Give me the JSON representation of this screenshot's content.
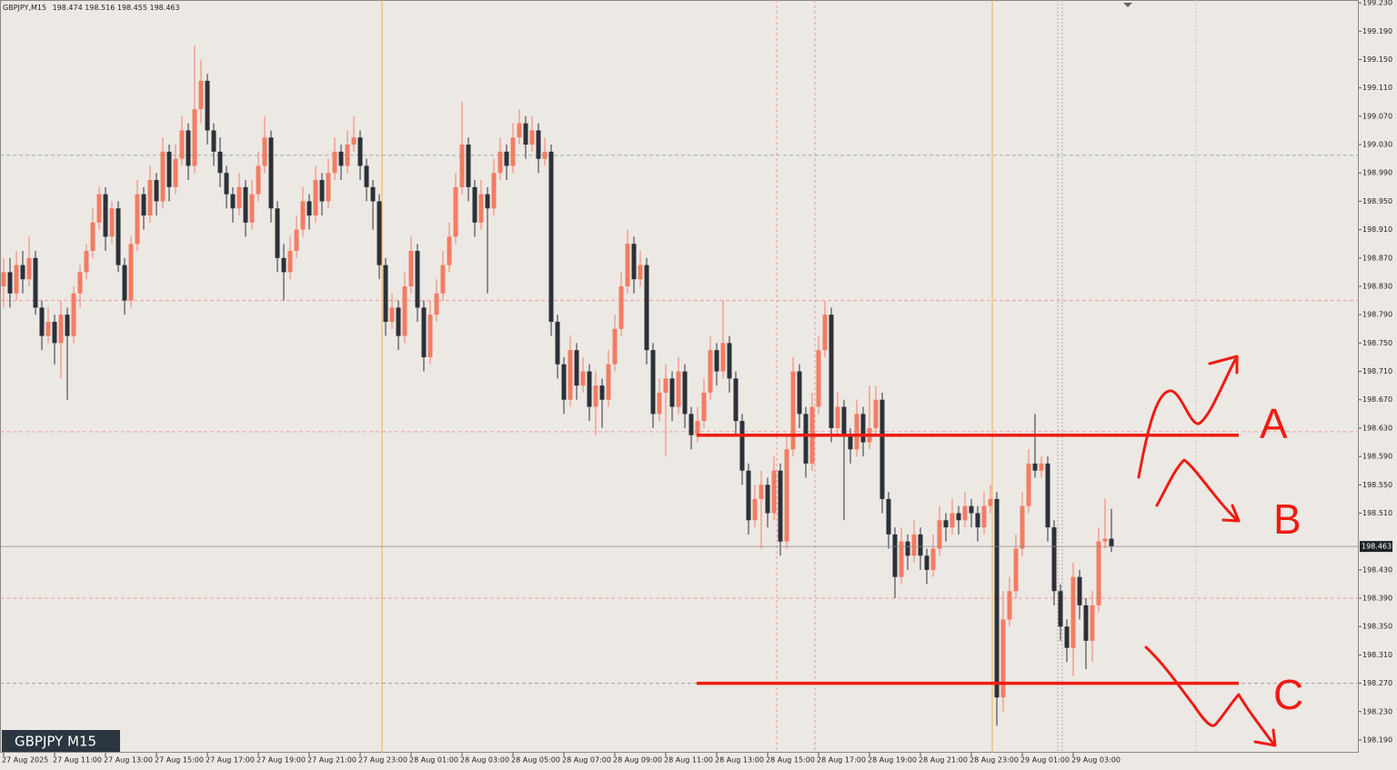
{
  "chart_data": {
    "type": "candlestick",
    "header_symbol": "GBPJPY,M15",
    "label_box": "GBPJPY M15",
    "bull_color": "#f47c63",
    "bear_color": "#2c3138",
    "ylim": [
      198.172,
      199.234
    ],
    "yticks": [
      {
        "value": 199.23,
        "label": "199.230"
      },
      {
        "value": 199.19,
        "label": "199.190"
      },
      {
        "value": 199.15,
        "label": "199.150"
      },
      {
        "value": 199.11,
        "label": "199.110"
      },
      {
        "value": 199.07,
        "label": "199.070"
      },
      {
        "value": 199.03,
        "label": "199.030"
      },
      {
        "value": 198.99,
        "label": "198.990"
      },
      {
        "value": 198.95,
        "label": "198.950"
      },
      {
        "value": 198.91,
        "label": "198.910"
      },
      {
        "value": 198.87,
        "label": "198.870"
      },
      {
        "value": 198.83,
        "label": "198.830"
      },
      {
        "value": 198.79,
        "label": "198.790"
      },
      {
        "value": 198.75,
        "label": "198.750"
      },
      {
        "value": 198.71,
        "label": "198.710"
      },
      {
        "value": 198.67,
        "label": "198.670"
      },
      {
        "value": 198.63,
        "label": "198.630"
      },
      {
        "value": 198.59,
        "label": "198.590"
      },
      {
        "value": 198.55,
        "label": "198.550"
      },
      {
        "value": 198.51,
        "label": "198.510"
      },
      {
        "value": 198.43,
        "label": "198.430"
      },
      {
        "value": 198.39,
        "label": "198.390"
      },
      {
        "value": 198.35,
        "label": "198.350"
      },
      {
        "value": 198.31,
        "label": "198.310"
      },
      {
        "value": 198.27,
        "label": "198.270"
      },
      {
        "value": 198.23,
        "label": "198.230"
      },
      {
        "value": 198.19,
        "label": "198.190"
      }
    ],
    "hlines": [
      199.015,
      198.81,
      198.625,
      198.39,
      198.27
    ],
    "hline_colors": [
      "#9fb0a8",
      "#e8a0a0",
      "#e8a0a0",
      "#e8a0a0",
      "#9aa2a8"
    ],
    "levels": [
      198.62,
      198.27
    ],
    "level_color": "#ee1c12",
    "annotations": [
      "A",
      "B",
      "C"
    ],
    "categories": [
      "27 Aug 2025",
      null,
      null,
      null,
      null,
      null,
      null,
      null,
      "27 Aug 11:00",
      null,
      null,
      null,
      null,
      null,
      null,
      null,
      "27 Aug 13:00",
      null,
      null,
      null,
      null,
      null,
      null,
      null,
      "27 Aug 15:00",
      null,
      null,
      null,
      null,
      null,
      null,
      null,
      "27 Aug 17:00",
      null,
      null,
      null,
      null,
      null,
      null,
      null,
      "27 Aug 19:00",
      null,
      null,
      null,
      null,
      null,
      null,
      null,
      "27 Aug 21:00",
      null,
      null,
      null,
      null,
      null,
      null,
      null,
      "27 Aug 23:00",
      null,
      null,
      null,
      null,
      null,
      null,
      null,
      "28 Aug 01:00",
      null,
      null,
      null,
      null,
      null,
      null,
      null,
      "28 Aug 03:00",
      null,
      null,
      null,
      null,
      null,
      null,
      null,
      "28 Aug 05:00",
      null,
      null,
      null,
      null,
      null,
      null,
      null,
      "28 Aug 07:00",
      null,
      null,
      null,
      null,
      null,
      null,
      null,
      "28 Aug 09:00",
      null,
      null,
      null,
      null,
      null,
      null,
      null,
      "28 Aug 11:00",
      null,
      null,
      null,
      null,
      null,
      null,
      null,
      "28 Aug 13:00",
      null,
      null,
      null,
      null,
      null,
      null,
      null,
      "28 Aug 15:00",
      null,
      null,
      null,
      null,
      null,
      null,
      null,
      "28 Aug 17:00",
      null,
      null,
      null,
      null,
      null,
      null,
      null,
      "28 Aug 19:00",
      null,
      null,
      null,
      null,
      null,
      null,
      null,
      "28 Aug 21:00",
      null,
      null,
      null,
      null,
      null,
      null,
      null,
      "28 Aug 23:00",
      null,
      null,
      null,
      null,
      null,
      null,
      null,
      "29 Aug 01:00",
      null,
      null,
      null,
      null,
      null,
      null,
      null,
      "29 Aug 03:00",
      null,
      null,
      null,
      null,
      null,
      null
    ],
    "ohlc": [
      [
        198.83,
        198.87,
        198.8,
        198.85
      ],
      [
        198.85,
        198.87,
        198.8,
        198.82
      ],
      [
        198.82,
        198.88,
        198.81,
        198.86
      ],
      [
        198.86,
        198.88,
        198.82,
        198.84
      ],
      [
        198.84,
        198.9,
        198.83,
        198.87
      ],
      [
        198.87,
        198.88,
        198.79,
        198.8
      ],
      [
        198.8,
        198.81,
        198.74,
        198.76
      ],
      [
        198.76,
        198.8,
        198.75,
        198.78
      ],
      [
        198.78,
        198.79,
        198.72,
        198.75
      ],
      [
        198.75,
        198.81,
        198.7,
        198.79
      ],
      [
        198.79,
        198.8,
        198.67,
        198.76
      ],
      [
        198.76,
        198.83,
        198.75,
        198.82
      ],
      [
        198.82,
        198.86,
        198.8,
        198.85
      ],
      [
        198.85,
        198.89,
        198.84,
        198.88
      ],
      [
        198.88,
        198.94,
        198.87,
        198.92
      ],
      [
        198.92,
        198.97,
        198.91,
        198.96
      ],
      [
        198.96,
        198.97,
        198.88,
        198.9
      ],
      [
        198.9,
        198.95,
        198.89,
        198.94
      ],
      [
        198.94,
        198.95,
        198.85,
        198.86
      ],
      [
        198.86,
        198.87,
        198.79,
        198.81
      ],
      [
        198.81,
        198.9,
        198.8,
        198.89
      ],
      [
        198.89,
        198.98,
        198.88,
        198.96
      ],
      [
        198.96,
        198.97,
        198.91,
        198.93
      ],
      [
        198.93,
        199.0,
        198.92,
        198.98
      ],
      [
        198.98,
        198.99,
        198.93,
        198.95
      ],
      [
        198.95,
        199.04,
        198.94,
        199.02
      ],
      [
        199.02,
        199.03,
        198.95,
        198.97
      ],
      [
        198.97,
        199.03,
        198.96,
        199.01
      ],
      [
        199.01,
        199.07,
        199.0,
        199.05
      ],
      [
        199.05,
        199.06,
        198.98,
        199.0
      ],
      [
        199.0,
        199.17,
        198.99,
        199.08
      ],
      [
        199.08,
        199.15,
        199.06,
        199.12
      ],
      [
        199.12,
        199.13,
        199.03,
        199.05
      ],
      [
        199.05,
        199.06,
        199.0,
        199.02
      ],
      [
        199.02,
        199.04,
        198.97,
        198.99
      ],
      [
        198.99,
        199.0,
        198.94,
        198.96
      ],
      [
        198.96,
        198.97,
        198.92,
        198.94
      ],
      [
        198.94,
        198.99,
        198.93,
        198.97
      ],
      [
        198.97,
        198.98,
        198.9,
        198.92
      ],
      [
        198.92,
        198.98,
        198.91,
        198.96
      ],
      [
        198.96,
        199.02,
        198.95,
        199.0
      ],
      [
        199.0,
        199.07,
        198.99,
        199.04
      ],
      [
        199.04,
        199.05,
        198.92,
        198.94
      ],
      [
        198.94,
        198.95,
        198.85,
        198.87
      ],
      [
        198.87,
        198.89,
        198.81,
        198.85
      ],
      [
        198.85,
        198.9,
        198.84,
        198.88
      ],
      [
        198.88,
        198.93,
        198.87,
        198.91
      ],
      [
        198.91,
        198.97,
        198.9,
        198.95
      ],
      [
        198.95,
        198.96,
        198.91,
        198.93
      ],
      [
        198.93,
        199.0,
        198.92,
        198.98
      ],
      [
        198.98,
        198.99,
        198.93,
        198.95
      ],
      [
        198.95,
        199.01,
        198.94,
        198.99
      ],
      [
        198.99,
        199.04,
        198.98,
        199.02
      ],
      [
        199.02,
        199.03,
        198.98,
        199.0
      ],
      [
        199.0,
        199.05,
        198.99,
        199.03
      ],
      [
        199.03,
        199.07,
        199.02,
        199.04
      ],
      [
        199.04,
        199.05,
        198.98,
        199.0
      ],
      [
        199.0,
        199.01,
        198.95,
        198.97
      ],
      [
        198.97,
        198.98,
        198.91,
        198.95
      ],
      [
        198.95,
        198.96,
        198.84,
        198.86
      ],
      [
        198.86,
        198.87,
        198.76,
        198.78
      ],
      [
        198.78,
        198.82,
        198.77,
        198.8
      ],
      [
        198.8,
        198.81,
        198.74,
        198.76
      ],
      [
        198.76,
        198.85,
        198.75,
        198.83
      ],
      [
        198.83,
        198.9,
        198.82,
        198.88
      ],
      [
        198.88,
        198.89,
        198.78,
        198.8
      ],
      [
        198.8,
        198.81,
        198.71,
        198.73
      ],
      [
        198.73,
        198.81,
        198.72,
        198.79
      ],
      [
        198.79,
        198.84,
        198.78,
        198.82
      ],
      [
        198.82,
        198.88,
        198.81,
        198.86
      ],
      [
        198.86,
        198.92,
        198.85,
        198.9
      ],
      [
        198.9,
        198.99,
        198.89,
        198.97
      ],
      [
        198.97,
        199.09,
        198.96,
        199.03
      ],
      [
        199.03,
        199.04,
        198.95,
        198.97
      ],
      [
        198.97,
        198.98,
        198.9,
        198.92
      ],
      [
        198.92,
        198.98,
        198.91,
        198.96
      ],
      [
        198.96,
        198.97,
        198.82,
        198.94
      ],
      [
        198.94,
        199.01,
        198.93,
        198.99
      ],
      [
        198.99,
        199.04,
        198.98,
        199.02
      ],
      [
        199.02,
        199.03,
        198.98,
        199.0
      ],
      [
        199.0,
        199.06,
        198.99,
        199.04
      ],
      [
        199.04,
        199.08,
        199.03,
        199.06
      ],
      [
        199.06,
        199.07,
        199.01,
        199.03
      ],
      [
        199.03,
        199.07,
        199.02,
        199.05
      ],
      [
        199.05,
        199.06,
        198.99,
        199.01
      ],
      [
        199.01,
        199.04,
        199.0,
        199.02
      ],
      [
        199.02,
        199.03,
        198.76,
        198.78
      ],
      [
        198.78,
        198.79,
        198.7,
        198.72
      ],
      [
        198.72,
        198.73,
        198.65,
        198.67
      ],
      [
        198.67,
        198.76,
        198.66,
        198.74
      ],
      [
        198.74,
        198.75,
        198.67,
        198.69
      ],
      [
        198.69,
        198.73,
        198.68,
        198.71
      ],
      [
        198.71,
        198.72,
        198.64,
        198.66
      ],
      [
        198.66,
        198.71,
        198.62,
        198.69
      ],
      [
        198.69,
        198.7,
        198.63,
        198.67
      ],
      [
        198.67,
        198.74,
        198.66,
        198.72
      ],
      [
        198.72,
        198.79,
        198.71,
        198.77
      ],
      [
        198.77,
        198.85,
        198.76,
        198.83
      ],
      [
        198.83,
        198.91,
        198.82,
        198.89
      ],
      [
        198.89,
        198.9,
        198.82,
        198.84
      ],
      [
        198.84,
        198.88,
        198.83,
        198.86
      ],
      [
        198.86,
        198.87,
        198.72,
        198.74
      ],
      [
        198.74,
        198.75,
        198.63,
        198.65
      ],
      [
        198.65,
        198.7,
        198.64,
        198.68
      ],
      [
        198.68,
        198.72,
        198.59,
        198.7
      ],
      [
        198.7,
        198.71,
        198.64,
        198.66
      ],
      [
        198.66,
        198.73,
        198.65,
        198.71
      ],
      [
        198.71,
        198.72,
        198.63,
        198.65
      ],
      [
        198.65,
        198.66,
        198.6,
        198.62
      ],
      [
        198.62,
        198.66,
        198.61,
        198.64
      ],
      [
        198.64,
        198.7,
        198.63,
        198.68
      ],
      [
        198.68,
        198.76,
        198.67,
        198.74
      ],
      [
        198.74,
        198.75,
        198.69,
        198.71
      ],
      [
        198.71,
        198.81,
        198.7,
        198.75
      ],
      [
        198.75,
        198.76,
        198.68,
        198.7
      ],
      [
        198.7,
        198.71,
        198.62,
        198.64
      ],
      [
        198.64,
        198.65,
        198.55,
        198.57
      ],
      [
        198.57,
        198.58,
        198.48,
        198.5
      ],
      [
        198.5,
        198.55,
        198.49,
        198.53
      ],
      [
        198.53,
        198.57,
        198.46,
        198.55
      ],
      [
        198.55,
        198.56,
        198.49,
        198.51
      ],
      [
        198.51,
        198.59,
        198.5,
        198.57
      ],
      [
        198.57,
        198.58,
        198.45,
        198.47
      ],
      [
        198.47,
        198.62,
        198.46,
        198.6
      ],
      [
        198.6,
        198.73,
        198.59,
        198.71
      ],
      [
        198.71,
        198.72,
        198.63,
        198.65
      ],
      [
        198.65,
        198.66,
        198.56,
        198.58
      ],
      [
        198.58,
        198.68,
        198.57,
        198.66
      ],
      [
        198.66,
        198.76,
        198.65,
        198.74
      ],
      [
        198.74,
        198.81,
        198.73,
        198.79
      ],
      [
        198.79,
        198.8,
        198.61,
        198.63
      ],
      [
        198.63,
        198.68,
        198.62,
        198.66
      ],
      [
        198.66,
        198.67,
        198.5,
        198.62
      ],
      [
        198.62,
        198.63,
        198.58,
        198.6
      ],
      [
        198.6,
        198.67,
        198.59,
        198.65
      ],
      [
        198.65,
        198.66,
        198.59,
        198.61
      ],
      [
        198.61,
        198.69,
        198.6,
        198.63
      ],
      [
        198.63,
        198.69,
        198.62,
        198.67
      ],
      [
        198.67,
        198.68,
        198.51,
        198.53
      ],
      [
        198.53,
        198.54,
        198.46,
        198.48
      ],
      [
        198.48,
        198.49,
        198.39,
        198.42
      ],
      [
        198.42,
        198.49,
        198.41,
        198.47
      ],
      [
        198.47,
        198.48,
        198.43,
        198.45
      ],
      [
        198.45,
        198.5,
        198.44,
        198.48
      ],
      [
        198.48,
        198.49,
        198.43,
        198.45
      ],
      [
        198.45,
        198.46,
        198.41,
        198.43
      ],
      [
        198.43,
        198.48,
        198.42,
        198.46
      ],
      [
        198.46,
        198.52,
        198.45,
        198.5
      ],
      [
        198.5,
        198.51,
        198.47,
        198.49
      ],
      [
        198.49,
        198.53,
        198.48,
        198.51
      ],
      [
        198.51,
        198.52,
        198.48,
        198.5
      ],
      [
        198.5,
        198.54,
        198.49,
        198.52
      ],
      [
        198.52,
        198.53,
        198.49,
        198.51
      ],
      [
        198.51,
        198.52,
        198.47,
        198.49
      ],
      [
        198.49,
        198.54,
        198.48,
        198.52
      ],
      [
        198.52,
        198.55,
        198.51,
        198.53
      ],
      [
        198.53,
        198.54,
        198.21,
        198.25
      ],
      [
        198.25,
        198.4,
        198.23,
        198.36
      ],
      [
        198.36,
        198.42,
        198.35,
        198.4
      ],
      [
        198.4,
        198.48,
        198.39,
        198.46
      ],
      [
        198.46,
        198.54,
        198.45,
        198.52
      ],
      [
        198.52,
        198.6,
        198.51,
        198.58
      ],
      [
        198.58,
        198.65,
        198.56,
        198.57
      ],
      [
        198.57,
        198.59,
        198.56,
        198.58
      ],
      [
        198.58,
        198.59,
        198.47,
        198.49
      ],
      [
        198.49,
        198.5,
        198.38,
        198.4
      ],
      [
        198.4,
        198.41,
        198.33,
        198.35
      ],
      [
        198.35,
        198.36,
        198.3,
        198.32
      ],
      [
        198.32,
        198.44,
        198.28,
        198.42
      ],
      [
        198.42,
        198.43,
        198.36,
        198.38
      ],
      [
        198.38,
        198.39,
        198.29,
        198.33
      ],
      [
        198.33,
        198.4,
        198.3,
        198.38
      ],
      [
        198.38,
        198.49,
        198.37,
        198.47
      ],
      [
        198.47,
        198.53,
        198.46,
        198.474
      ],
      [
        198.474,
        198.516,
        198.455,
        198.463
      ]
    ]
  }
}
